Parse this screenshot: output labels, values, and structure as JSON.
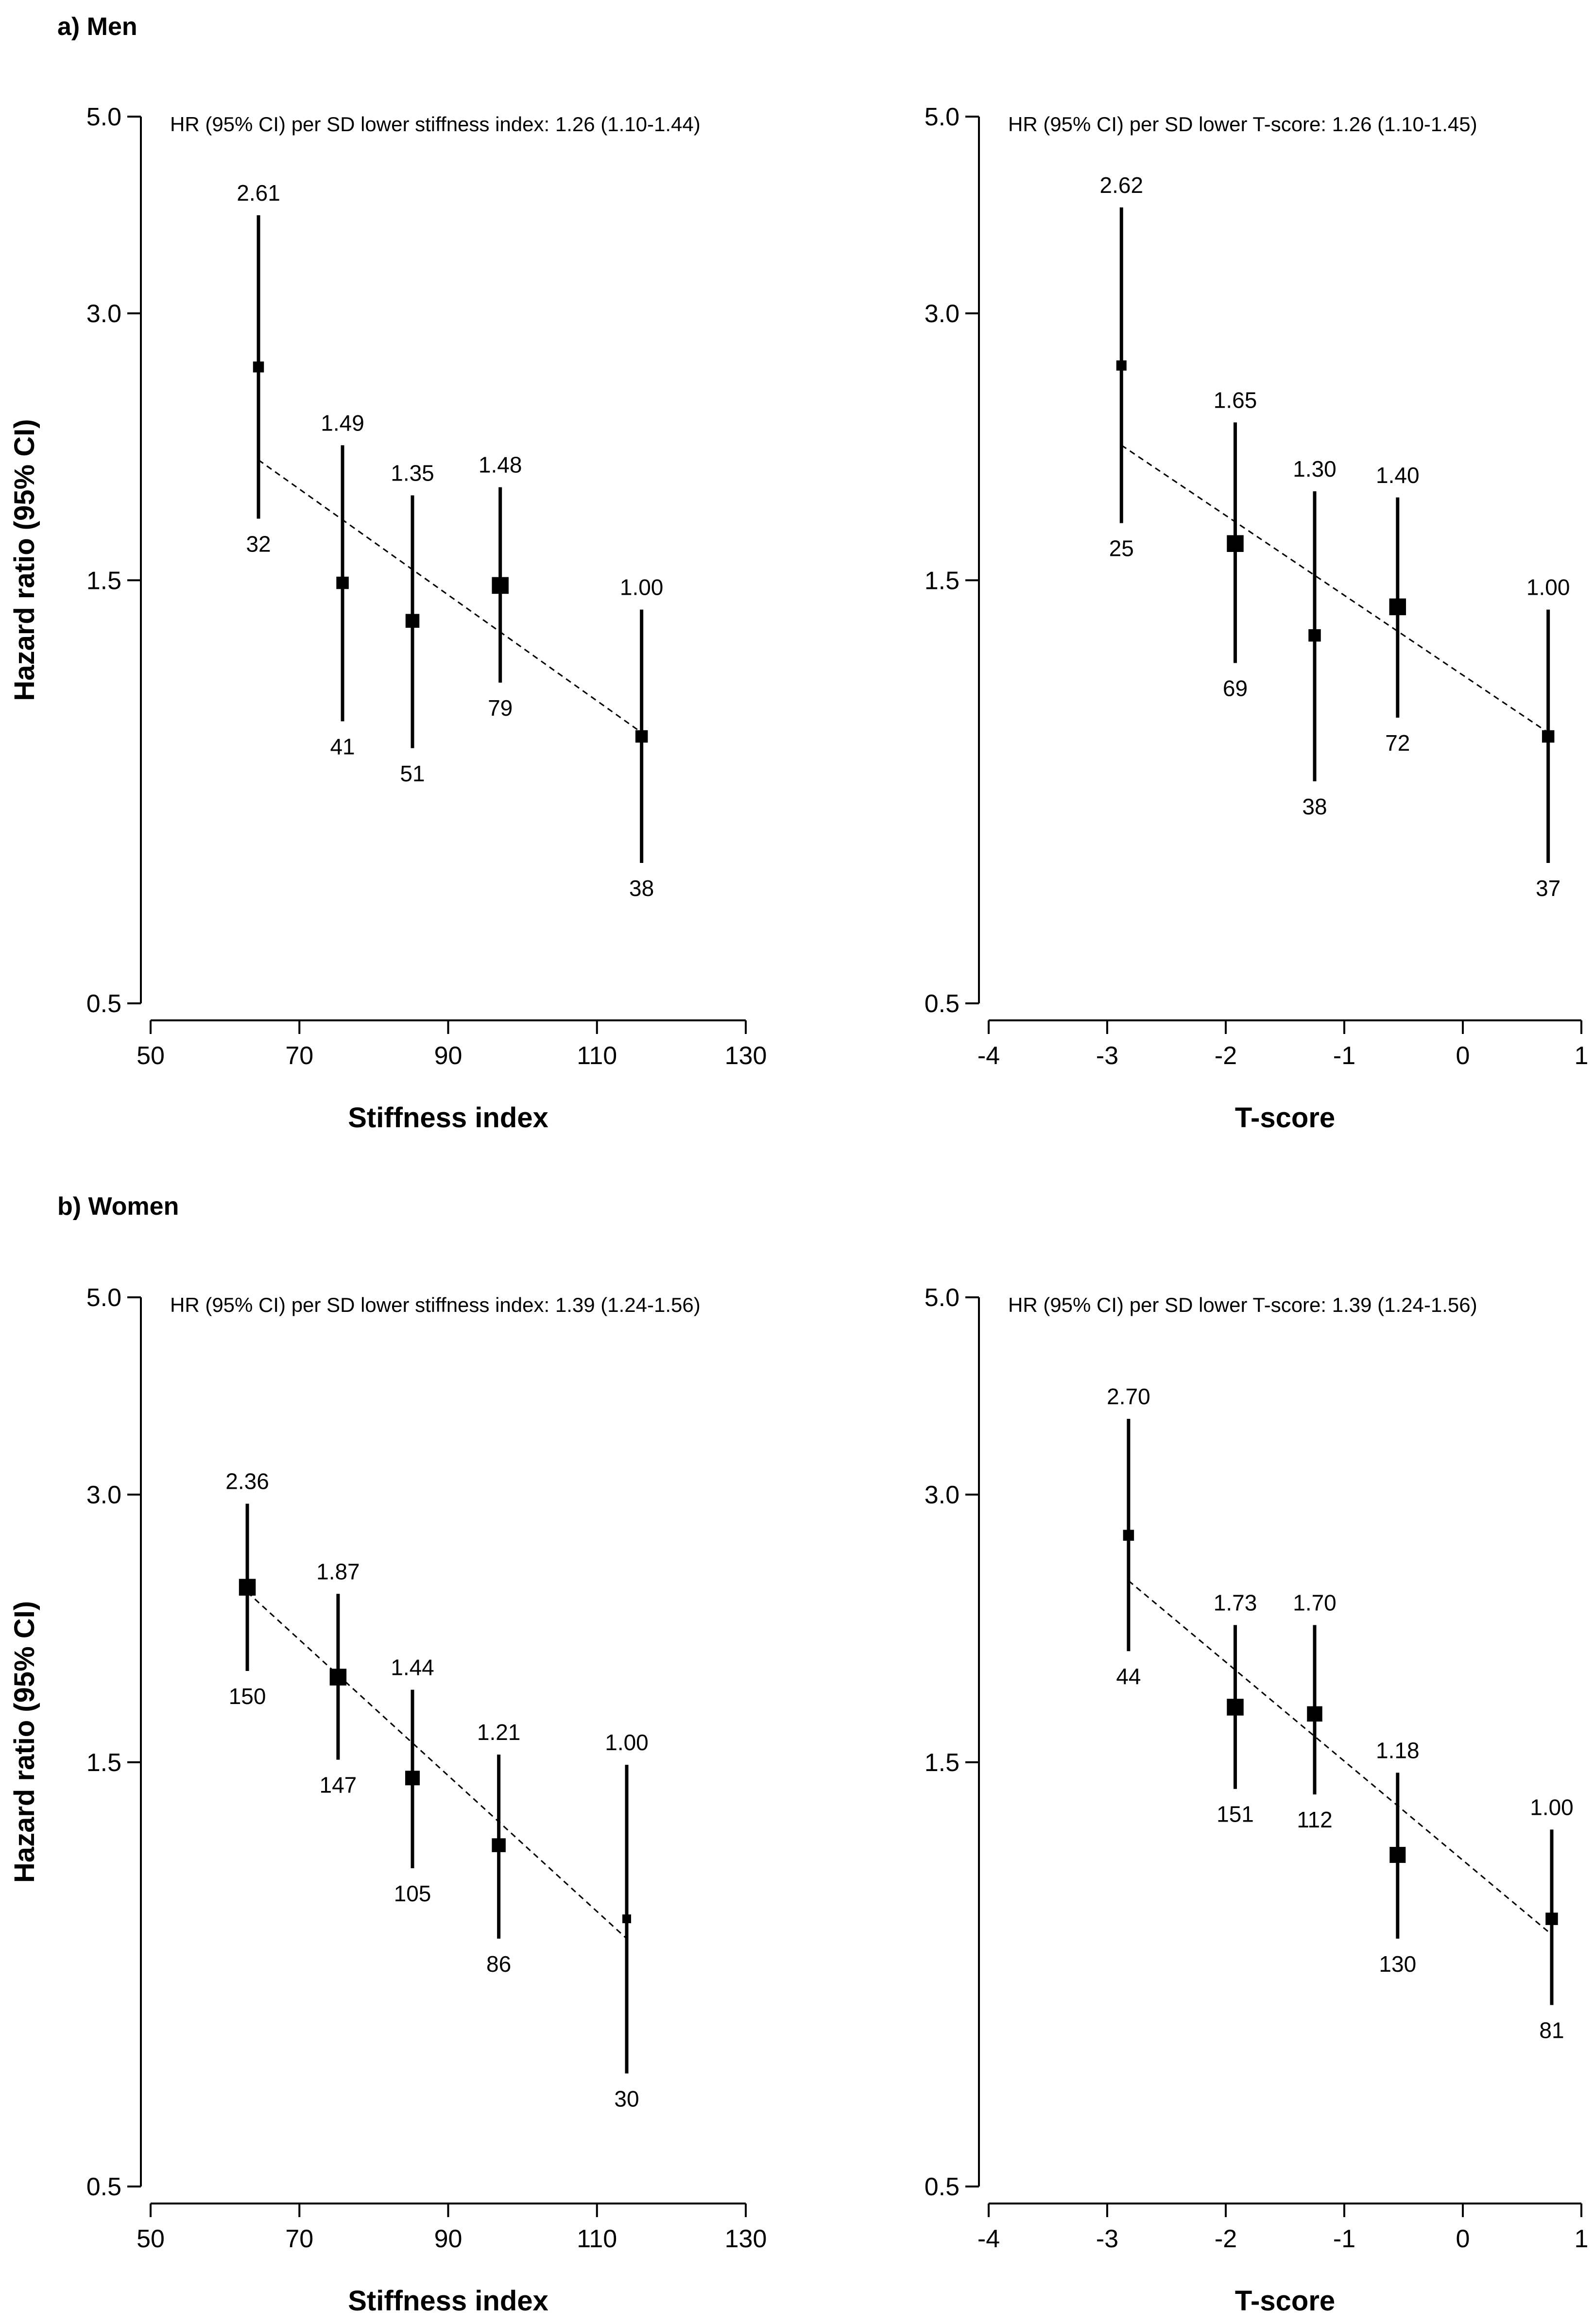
{
  "sections": [
    {
      "label": "a) Men"
    },
    {
      "label": "b) Women"
    }
  ],
  "chart_data": [
    {
      "type": "scatter",
      "section": "a) Men",
      "title": "HR (95% CI) per SD lower stiffness index: 1.26 (1.10-1.44)",
      "xlabel": "Stiffness index",
      "ylabel": "Hazard ratio (95% CI)",
      "yscale": "log",
      "xlim": [
        50,
        130
      ],
      "ylim": [
        0.5,
        5.0
      ],
      "xticks": [
        50,
        70,
        90,
        110,
        130
      ],
      "xtick_labels": [
        "50",
        "70",
        "90",
        "110",
        "130"
      ],
      "yticks": [
        0.5,
        1.5,
        3.0,
        5.0
      ],
      "ytick_labels": [
        "0.5",
        "1.5",
        "3.0",
        "5.0"
      ],
      "points": [
        {
          "x": 64.5,
          "hr": 2.61,
          "lo": 1.76,
          "hi": 3.87,
          "label": "2.61",
          "cases": "32",
          "size": 0.75
        },
        {
          "x": 75.8,
          "hr": 1.49,
          "lo": 1.04,
          "hi": 2.13,
          "label": "1.49",
          "cases": "41",
          "size": 0.85
        },
        {
          "x": 85.2,
          "hr": 1.35,
          "lo": 0.97,
          "hi": 1.87,
          "label": "1.35",
          "cases": "51",
          "size": 0.95
        },
        {
          "x": 97.0,
          "hr": 1.48,
          "lo": 1.15,
          "hi": 1.91,
          "label": "1.48",
          "cases": "79",
          "size": 1.15
        },
        {
          "x": 116.0,
          "hr": 1.0,
          "lo": 0.72,
          "hi": 1.39,
          "label": "1.00",
          "cases": "38",
          "size": 0.85
        }
      ],
      "trend": {
        "x": [
          64.5,
          116.0
        ],
        "y": [
          2.05,
          1.01
        ]
      }
    },
    {
      "type": "scatter",
      "section": "a) Men",
      "title": "HR (95% CI) per SD lower T-score: 1.26 (1.10-1.45)",
      "xlabel": "T-score",
      "ylabel": "",
      "yscale": "log",
      "xlim": [
        -4,
        1
      ],
      "ylim": [
        0.5,
        5.0
      ],
      "xticks": [
        -4,
        -3,
        -2,
        -1,
        0,
        1
      ],
      "xtick_labels": [
        "-4",
        "-3",
        "-2",
        "-1",
        "0",
        "1"
      ],
      "yticks": [
        0.5,
        1.5,
        3.0,
        5.0
      ],
      "ytick_labels": [
        "0.5",
        "1.5",
        "3.0",
        "5.0"
      ],
      "points": [
        {
          "x": -2.88,
          "hr": 2.62,
          "lo": 1.74,
          "hi": 3.95,
          "label": "2.62",
          "cases": "25",
          "size": 0.7
        },
        {
          "x": -1.92,
          "hr": 1.65,
          "lo": 1.21,
          "hi": 2.26,
          "label": "1.65",
          "cases": "69",
          "size": 1.15
        },
        {
          "x": -1.25,
          "hr": 1.3,
          "lo": 0.89,
          "hi": 1.89,
          "label": "1.30",
          "cases": "38",
          "size": 0.85
        },
        {
          "x": -0.55,
          "hr": 1.4,
          "lo": 1.05,
          "hi": 1.86,
          "label": "1.40",
          "cases": "72",
          "size": 1.15
        },
        {
          "x": 0.72,
          "hr": 1.0,
          "lo": 0.72,
          "hi": 1.39,
          "label": "1.00",
          "cases": "37",
          "size": 0.85
        }
      ],
      "trend": {
        "x": [
          -2.88,
          0.72
        ],
        "y": [
          2.13,
          1.01
        ]
      }
    },
    {
      "type": "scatter",
      "section": "b) Women",
      "title": "HR (95% CI) per SD lower stiffness index: 1.39 (1.24-1.56)",
      "xlabel": "Stiffness index",
      "ylabel": "Hazard ratio (95% CI)",
      "yscale": "log",
      "xlim": [
        50,
        130
      ],
      "ylim": [
        0.5,
        5.0
      ],
      "xticks": [
        50,
        70,
        90,
        110,
        130
      ],
      "xtick_labels": [
        "50",
        "70",
        "90",
        "110",
        "130"
      ],
      "yticks": [
        0.5,
        1.5,
        3.0,
        5.0
      ],
      "ytick_labels": [
        "0.5",
        "1.5",
        "3.0",
        "5.0"
      ],
      "points": [
        {
          "x": 63.0,
          "hr": 2.36,
          "lo": 1.9,
          "hi": 2.93,
          "label": "2.36",
          "cases": "150",
          "size": 1.15
        },
        {
          "x": 75.2,
          "hr": 1.87,
          "lo": 1.51,
          "hi": 2.32,
          "label": "1.87",
          "cases": "147",
          "size": 1.15
        },
        {
          "x": 85.2,
          "hr": 1.44,
          "lo": 1.14,
          "hi": 1.81,
          "label": "1.44",
          "cases": "105",
          "size": 1.0
        },
        {
          "x": 96.8,
          "hr": 1.21,
          "lo": 0.95,
          "hi": 1.53,
          "label": "1.21",
          "cases": "86",
          "size": 0.95
        },
        {
          "x": 114.0,
          "hr": 1.0,
          "lo": 0.67,
          "hi": 1.49,
          "label": "1.00",
          "cases": "30",
          "size": 0.6
        }
      ],
      "trend": {
        "x": [
          63.0,
          114.0
        ],
        "y": [
          2.33,
          0.95
        ]
      }
    },
    {
      "type": "scatter",
      "section": "b) Women",
      "title": "HR (95% CI) per SD lower T-score: 1.39 (1.24-1.56)",
      "xlabel": "T-score",
      "ylabel": "",
      "yscale": "log",
      "xlim": [
        -4,
        1
      ],
      "ylim": [
        0.5,
        5.0
      ],
      "xticks": [
        -4,
        -3,
        -2,
        -1,
        0,
        1
      ],
      "xtick_labels": [
        "-4",
        "-3",
        "-2",
        "-1",
        "0",
        "1"
      ],
      "yticks": [
        0.5,
        1.5,
        3.0,
        5.0
      ],
      "ytick_labels": [
        "0.5",
        "1.5",
        "3.0",
        "5.0"
      ],
      "points": [
        {
          "x": -2.82,
          "hr": 2.7,
          "lo": 2.0,
          "hi": 3.65,
          "label": "2.70",
          "cases": "44",
          "size": 0.75
        },
        {
          "x": -1.92,
          "hr": 1.73,
          "lo": 1.4,
          "hi": 2.14,
          "label": "1.73",
          "cases": "151",
          "size": 1.15
        },
        {
          "x": -1.25,
          "hr": 1.7,
          "lo": 1.38,
          "hi": 2.14,
          "label": "1.70",
          "cases": "112",
          "size": 1.05
        },
        {
          "x": -0.55,
          "hr": 1.18,
          "lo": 0.95,
          "hi": 1.46,
          "label": "1.18",
          "cases": "130",
          "size": 1.1
        },
        {
          "x": 0.75,
          "hr": 1.0,
          "lo": 0.8,
          "hi": 1.26,
          "label": "1.00",
          "cases": "81",
          "size": 0.85
        }
      ],
      "trend": {
        "x": [
          -2.82,
          0.75
        ],
        "y": [
          2.4,
          0.96
        ]
      }
    }
  ]
}
